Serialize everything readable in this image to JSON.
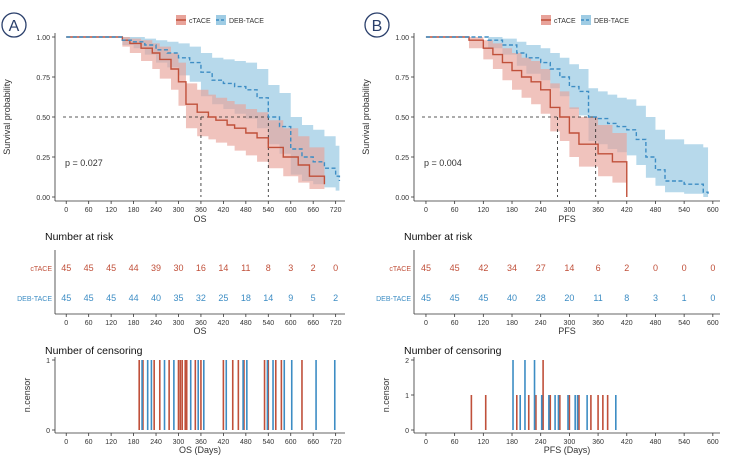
{
  "colors": {
    "ctace": "#C0503A",
    "deb": "#3D8DC4",
    "ctace_fill": "#E8A39A",
    "deb_fill": "#9FCCE4",
    "axis": "#333333",
    "text": "#333333"
  },
  "legend": {
    "ctace": "cTACE",
    "deb": "DEB-TACE"
  },
  "chart_data": [
    {
      "panel": "A",
      "type": "line",
      "subtype": "kaplan-meier",
      "ylabel": "Survival probability",
      "xlabel": "OS",
      "x_ticks": [
        0,
        60,
        120,
        180,
        240,
        300,
        360,
        420,
        480,
        540,
        600,
        660,
        720
      ],
      "y_ticks": [
        "0.00",
        "0.25",
        "0.50",
        "0.75",
        "1.00"
      ],
      "xlim": [
        -30,
        745
      ],
      "ylim": [
        0,
        1
      ],
      "pvalue": "p = 0.027",
      "median": {
        "ctace": 360,
        "deb": 540
      },
      "series": [
        {
          "name": "cTACE",
          "x": [
            0,
            150,
            170,
            200,
            230,
            250,
            280,
            300,
            320,
            350,
            380,
            400,
            430,
            450,
            480,
            510,
            540,
            580,
            620,
            650,
            690
          ],
          "y": [
            1.0,
            0.98,
            0.96,
            0.93,
            0.9,
            0.86,
            0.8,
            0.72,
            0.58,
            0.53,
            0.5,
            0.48,
            0.45,
            0.43,
            0.4,
            0.37,
            0.31,
            0.25,
            0.2,
            0.13,
            0.08
          ],
          "ci_upper": [
            1.0,
            1.0,
            0.99,
            0.98,
            0.96,
            0.94,
            0.9,
            0.84,
            0.71,
            0.67,
            0.64,
            0.62,
            0.6,
            0.58,
            0.55,
            0.53,
            0.48,
            0.43,
            0.38,
            0.31,
            0.23
          ],
          "ci_lower": [
            1.0,
            0.94,
            0.9,
            0.85,
            0.8,
            0.74,
            0.67,
            0.57,
            0.43,
            0.38,
            0.36,
            0.34,
            0.32,
            0.29,
            0.26,
            0.22,
            0.18,
            0.13,
            0.09,
            0.05,
            0.02
          ]
        },
        {
          "name": "DEB-TACE",
          "x": [
            0,
            150,
            180,
            210,
            240,
            270,
            300,
            330,
            360,
            390,
            420,
            450,
            480,
            510,
            540,
            570,
            600,
            630,
            660,
            690,
            720,
            730
          ],
          "y": [
            1.0,
            0.98,
            0.97,
            0.95,
            0.92,
            0.9,
            0.87,
            0.84,
            0.78,
            0.73,
            0.71,
            0.69,
            0.67,
            0.62,
            0.5,
            0.44,
            0.3,
            0.25,
            0.22,
            0.18,
            0.13,
            0.1
          ],
          "ci_upper": [
            1.0,
            1.0,
            1.0,
            0.99,
            0.98,
            0.97,
            0.96,
            0.94,
            0.9,
            0.87,
            0.86,
            0.85,
            0.84,
            0.8,
            0.7,
            0.65,
            0.5,
            0.45,
            0.42,
            0.38,
            0.32,
            0.27
          ],
          "ci_lower": [
            1.0,
            0.95,
            0.93,
            0.89,
            0.84,
            0.81,
            0.76,
            0.72,
            0.63,
            0.58,
            0.55,
            0.52,
            0.49,
            0.43,
            0.33,
            0.27,
            0.14,
            0.1,
            0.08,
            0.06,
            0.04,
            0.02
          ]
        }
      ],
      "risk_table": {
        "title": "Number at risk",
        "xlabel": "OS",
        "x_ticks": [
          0,
          60,
          120,
          180,
          240,
          300,
          360,
          420,
          480,
          540,
          600,
          660,
          720
        ],
        "rows": [
          {
            "name": "cTACE",
            "values": [
              "45",
              "45",
              "45",
              "44",
              "39",
              "30",
              "16",
              "14",
              "11",
              "8",
              "3",
              "2",
              "0"
            ]
          },
          {
            "name": "DEB-TACE",
            "values": [
              "45",
              "45",
              "45",
              "44",
              "40",
              "35",
              "32",
              "25",
              "18",
              "14",
              "9",
              "5",
              "2"
            ]
          }
        ]
      },
      "censor": {
        "title": "Number of censoring",
        "ylabel": "n.censor",
        "xlabel": "OS (Days)",
        "x_ticks": [
          0,
          60,
          120,
          180,
          240,
          300,
          360,
          420,
          480,
          540,
          600,
          660,
          720
        ],
        "y_ticks": [
          "0",
          "1"
        ],
        "ymax": 1,
        "ctace": [
          {
            "x": 195,
            "n": 1
          },
          {
            "x": 205,
            "n": 1
          },
          {
            "x": 235,
            "n": 1
          },
          {
            "x": 250,
            "n": 1
          },
          {
            "x": 275,
            "n": 1
          },
          {
            "x": 300,
            "n": 1
          },
          {
            "x": 305,
            "n": 1
          },
          {
            "x": 310,
            "n": 1
          },
          {
            "x": 318,
            "n": 1
          },
          {
            "x": 322,
            "n": 1
          },
          {
            "x": 345,
            "n": 1
          },
          {
            "x": 360,
            "n": 1
          },
          {
            "x": 420,
            "n": 1
          },
          {
            "x": 445,
            "n": 1
          },
          {
            "x": 460,
            "n": 1
          },
          {
            "x": 475,
            "n": 1
          },
          {
            "x": 530,
            "n": 1
          },
          {
            "x": 540,
            "n": 1
          },
          {
            "x": 560,
            "n": 1
          },
          {
            "x": 575,
            "n": 1
          },
          {
            "x": 630,
            "n": 1
          }
        ],
        "deb": [
          {
            "x": 200,
            "n": 1
          },
          {
            "x": 215,
            "n": 1
          },
          {
            "x": 225,
            "n": 1
          },
          {
            "x": 260,
            "n": 1
          },
          {
            "x": 285,
            "n": 1
          },
          {
            "x": 330,
            "n": 1
          },
          {
            "x": 350,
            "n": 1
          },
          {
            "x": 365,
            "n": 1
          },
          {
            "x": 425,
            "n": 1
          },
          {
            "x": 470,
            "n": 1
          },
          {
            "x": 480,
            "n": 1
          },
          {
            "x": 535,
            "n": 1
          },
          {
            "x": 550,
            "n": 1
          },
          {
            "x": 580,
            "n": 1
          },
          {
            "x": 600,
            "n": 1
          },
          {
            "x": 665,
            "n": 1
          },
          {
            "x": 715,
            "n": 1
          }
        ]
      }
    },
    {
      "panel": "B",
      "type": "line",
      "subtype": "kaplan-meier",
      "ylabel": "Survival probability",
      "xlabel": "PFS",
      "x_ticks": [
        0,
        60,
        120,
        180,
        240,
        300,
        360,
        420,
        480,
        540,
        600
      ],
      "y_ticks": [
        "0.00",
        "0.25",
        "0.50",
        "0.75",
        "1.00"
      ],
      "xlim": [
        -25,
        615
      ],
      "ylim": [
        0,
        1
      ],
      "pvalue": "p = 0.004",
      "median": {
        "ctace": 275,
        "deb": 355
      },
      "series": [
        {
          "name": "cTACE",
          "x": [
            0,
            90,
            120,
            140,
            160,
            180,
            200,
            220,
            240,
            260,
            280,
            300,
            320,
            360,
            390,
            420
          ],
          "y": [
            1.0,
            0.98,
            0.93,
            0.89,
            0.84,
            0.79,
            0.75,
            0.72,
            0.67,
            0.56,
            0.5,
            0.4,
            0.33,
            0.27,
            0.22,
            0.0
          ],
          "ci_upper": [
            1.0,
            1.0,
            0.98,
            0.96,
            0.93,
            0.9,
            0.87,
            0.85,
            0.8,
            0.71,
            0.66,
            0.56,
            0.5,
            0.45,
            0.4,
            0.2
          ],
          "ci_lower": [
            1.0,
            0.93,
            0.86,
            0.8,
            0.73,
            0.67,
            0.62,
            0.58,
            0.52,
            0.41,
            0.35,
            0.25,
            0.19,
            0.13,
            0.09,
            0.0
          ]
        },
        {
          "name": "DEB-TACE",
          "x": [
            0,
            130,
            160,
            190,
            210,
            240,
            260,
            280,
            300,
            320,
            340,
            360,
            380,
            400,
            420,
            440,
            460,
            480,
            500,
            540,
            580,
            590
          ],
          "y": [
            1.0,
            0.98,
            0.95,
            0.9,
            0.87,
            0.84,
            0.8,
            0.75,
            0.69,
            0.66,
            0.5,
            0.49,
            0.46,
            0.44,
            0.42,
            0.36,
            0.25,
            0.17,
            0.1,
            0.08,
            0.03,
            0.02
          ],
          "ci_upper": [
            1.0,
            1.0,
            0.99,
            0.97,
            0.95,
            0.93,
            0.9,
            0.87,
            0.83,
            0.8,
            0.68,
            0.66,
            0.64,
            0.62,
            0.61,
            0.57,
            0.5,
            0.42,
            0.36,
            0.33,
            0.31,
            0.3
          ],
          "ci_lower": [
            1.0,
            0.93,
            0.89,
            0.82,
            0.77,
            0.73,
            0.68,
            0.63,
            0.55,
            0.51,
            0.35,
            0.33,
            0.3,
            0.28,
            0.26,
            0.2,
            0.12,
            0.07,
            0.03,
            0.02,
            0.0,
            0.0
          ]
        }
      ],
      "risk_table": {
        "title": "Number at risk",
        "xlabel": "PFS",
        "x_ticks": [
          0,
          60,
          120,
          180,
          240,
          300,
          360,
          420,
          480,
          540,
          600
        ],
        "rows": [
          {
            "name": "cTACE",
            "values": [
              "45",
              "45",
              "42",
              "34",
              "27",
              "14",
              "6",
              "2",
              "0",
              "0",
              "0"
            ]
          },
          {
            "name": "DEB-TACE",
            "values": [
              "45",
              "45",
              "45",
              "40",
              "28",
              "20",
              "11",
              "8",
              "3",
              "1",
              "0"
            ]
          }
        ]
      },
      "censor": {
        "title": "Number of censoring",
        "ylabel": "n.censor",
        "xlabel": "PFS (Days)",
        "x_ticks": [
          0,
          60,
          120,
          180,
          240,
          300,
          360,
          420,
          480,
          540,
          600
        ],
        "y_ticks": [
          "0",
          "1",
          "2"
        ],
        "ymax": 2,
        "ctace": [
          {
            "x": 95,
            "n": 1
          },
          {
            "x": 125,
            "n": 1
          },
          {
            "x": 190,
            "n": 1
          },
          {
            "x": 215,
            "n": 1
          },
          {
            "x": 230,
            "n": 1
          },
          {
            "x": 245,
            "n": 2
          },
          {
            "x": 260,
            "n": 1
          },
          {
            "x": 280,
            "n": 1
          },
          {
            "x": 300,
            "n": 1
          },
          {
            "x": 320,
            "n": 1
          },
          {
            "x": 345,
            "n": 1
          },
          {
            "x": 360,
            "n": 1
          },
          {
            "x": 370,
            "n": 1
          },
          {
            "x": 380,
            "n": 1
          }
        ],
        "deb": [
          {
            "x": 180,
            "n": 2
          },
          {
            "x": 195,
            "n": 1
          },
          {
            "x": 205,
            "n": 2
          },
          {
            "x": 225,
            "n": 2
          },
          {
            "x": 240,
            "n": 1
          },
          {
            "x": 255,
            "n": 1
          },
          {
            "x": 268,
            "n": 1
          },
          {
            "x": 275,
            "n": 1
          },
          {
            "x": 295,
            "n": 1
          },
          {
            "x": 310,
            "n": 1
          },
          {
            "x": 315,
            "n": 1
          },
          {
            "x": 335,
            "n": 1
          },
          {
            "x": 395,
            "n": 1
          }
        ]
      }
    }
  ]
}
